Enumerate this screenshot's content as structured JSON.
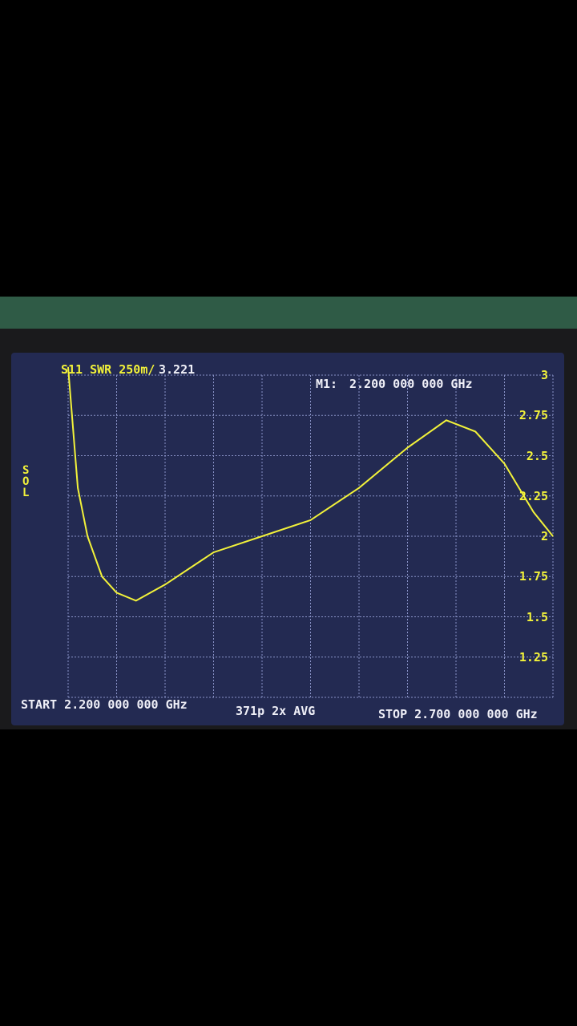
{
  "screen": {
    "trace_label": "S11 SWR 250m/",
    "trace_value": "3.221",
    "marker_label": "M1:",
    "marker_freq": "2.200 000 000 GHz",
    "side_label": "SOL",
    "start_label": "START 2.200 000 000 GHz",
    "points_avg": "371p 2x AVG",
    "stop_label": "STOP 2.700 000 000 GHz"
  },
  "colors": {
    "trace": "#f2f23a",
    "background": "#232a52",
    "grid": "#8a93c8"
  },
  "chart_data": {
    "type": "line",
    "xlabel": "",
    "ylabel": "",
    "xlim": [
      2.2,
      2.7
    ],
    "ylim": [
      1.0,
      3.0
    ],
    "grid": true,
    "y_tick_labels": [
      "3",
      "2.75",
      "2.5",
      "2.25",
      "2",
      "1.75",
      "1.5",
      "1.25"
    ],
    "series": [
      {
        "x": [
          2.2,
          2.21,
          2.22,
          2.235,
          2.25,
          2.27,
          2.3,
          2.35,
          2.4,
          2.45,
          2.5,
          2.55,
          2.59,
          2.62,
          2.65,
          2.68,
          2.7
        ],
        "y": [
          3.1,
          2.3,
          2.0,
          1.75,
          1.65,
          1.6,
          1.7,
          1.9,
          2.0,
          2.1,
          2.3,
          2.55,
          2.72,
          2.65,
          2.45,
          2.15,
          2.0
        ]
      }
    ]
  }
}
